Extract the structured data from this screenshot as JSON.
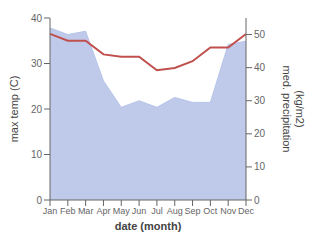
{
  "chart_data": {
    "type": "line",
    "x_label": "date (month)",
    "y_label": "max temp (C)",
    "y2_label": "med. precipitation\n(kg/m2)",
    "categories": [
      "Jan",
      "Feb",
      "Mar",
      "Apr",
      "May",
      "Jun",
      "Jul",
      "Aug",
      "Sep",
      "Oct",
      "Nov",
      "Dec"
    ],
    "series": [
      {
        "type": "area",
        "color": "#b8c4e8",
        "axis": "y2",
        "values": [
          52.0,
          50.0,
          51.0,
          36.0,
          28.0,
          30.0,
          28.0,
          31.0,
          29.5,
          29.5,
          47.0,
          48.0
        ]
      },
      {
        "type": "line",
        "color": "#c0504d",
        "values": [
          36.5,
          35.0,
          35.0,
          32.0,
          31.5,
          31.5,
          28.5,
          29.0,
          30.5,
          33.5,
          33.5,
          36.5
        ]
      }
    ],
    "ylim": [
      0,
      40
    ],
    "yticks": [
      0,
      10,
      20,
      30,
      40
    ],
    "y2lim": [
      0,
      55
    ],
    "y2ticks": [
      0,
      10,
      20,
      30,
      40,
      50
    ],
    "grid": false
  }
}
